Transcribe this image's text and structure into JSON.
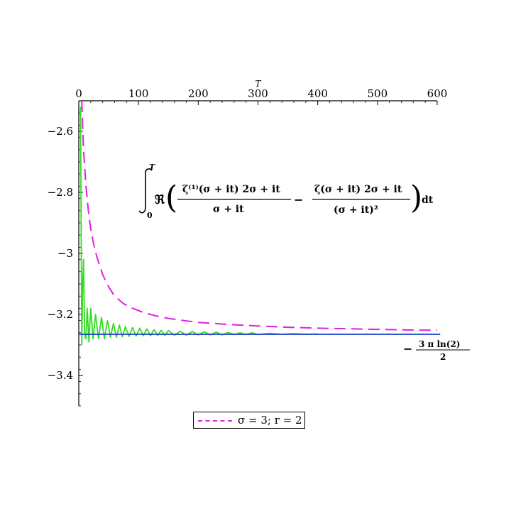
{
  "chart_data": {
    "type": "line",
    "xlabel": "T",
    "ylabel": "",
    "xlim": [
      0,
      600
    ],
    "ylim": [
      -3.5,
      -2.5
    ],
    "x_ticks": [
      0,
      100,
      200,
      300,
      400,
      500,
      600
    ],
    "y_ticks": [
      -2.6,
      -2.8,
      -3,
      -3.2,
      -3.4
    ],
    "x_tick_labels": [
      "0",
      "100",
      "200",
      "300",
      "400",
      "500",
      "600"
    ],
    "y_tick_labels": [
      "−2.6",
      "−2.8",
      "−3",
      "−3.2",
      "−3.4"
    ],
    "grid": false,
    "x_axis_position": "top",
    "legend_position": "bottom-center",
    "annotation": {
      "integral_upper": "T",
      "integral_lower": "0",
      "real_part": "ℜ",
      "num1": "ζ⁽¹⁾(σ + it) 2σ + it",
      "den1": "σ + it",
      "num2": "ζ(σ + it) 2σ + it",
      "den2": "(σ + it)²",
      "differential": "dt"
    },
    "asymptote_label": {
      "minus": "−",
      "numerator": "3 π ln(2)",
      "denominator": "2"
    },
    "series": [
      {
        "name": "σ = 3; r = 2",
        "color": "#e020e0",
        "style": "dashed",
        "x": [
          5,
          8,
          12,
          16,
          20,
          25,
          30,
          40,
          50,
          60,
          75,
          90,
          110,
          130,
          150,
          175,
          200,
          250,
          300,
          350,
          400,
          450,
          500,
          550,
          600
        ],
        "y": [
          -2.5,
          -2.66,
          -2.78,
          -2.86,
          -2.92,
          -2.97,
          -3.01,
          -3.07,
          -3.11,
          -3.14,
          -3.165,
          -3.18,
          -3.195,
          -3.205,
          -3.213,
          -3.22,
          -3.226,
          -3.233,
          -3.238,
          -3.242,
          -3.245,
          -3.247,
          -3.249,
          -3.251,
          -3.252
        ]
      },
      {
        "name": "",
        "color": "#33dd22",
        "style": "solid",
        "x": [
          3,
          5,
          6.5,
          8,
          10,
          12,
          14,
          17,
          20,
          24,
          28,
          33,
          38,
          43,
          48,
          53,
          58,
          63,
          68,
          73,
          78,
          84,
          90,
          96,
          102,
          108,
          114,
          120,
          126,
          132,
          138,
          144,
          150,
          160,
          170,
          180,
          190,
          200,
          210,
          220,
          230,
          240,
          250,
          260,
          270,
          280,
          290,
          300,
          320,
          340,
          360,
          380,
          400
        ],
        "y": [
          -2.52,
          -3.3,
          -3.1,
          -3.02,
          -3.27,
          -3.28,
          -3.18,
          -3.29,
          -3.18,
          -3.28,
          -3.2,
          -3.28,
          -3.21,
          -3.28,
          -3.22,
          -3.275,
          -3.23,
          -3.275,
          -3.235,
          -3.273,
          -3.24,
          -3.272,
          -3.243,
          -3.271,
          -3.245,
          -3.27,
          -3.248,
          -3.27,
          -3.25,
          -3.269,
          -3.252,
          -3.269,
          -3.253,
          -3.268,
          -3.255,
          -3.268,
          -3.256,
          -3.267,
          -3.257,
          -3.267,
          -3.258,
          -3.267,
          -3.259,
          -3.266,
          -3.26,
          -3.266,
          -3.26,
          -3.266,
          -3.262,
          -3.265,
          -3.263,
          -3.265,
          -3.264
        ]
      },
      {
        "name": "",
        "color": "#1a3fcc",
        "style": "solid",
        "x": [
          0,
          605
        ],
        "y": [
          -3.265,
          -3.265
        ]
      }
    ]
  }
}
